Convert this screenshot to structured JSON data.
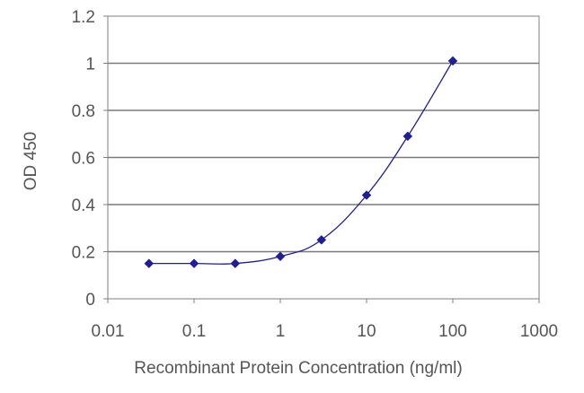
{
  "chart_data": {
    "type": "line",
    "title": "",
    "xlabel": "Recombinant Protein Concentration (ng/ml)",
    "ylabel": "OD 450",
    "x_scale": "log",
    "xlim": [
      0.01,
      1000
    ],
    "ylim": [
      0,
      1.2
    ],
    "x_ticks": [
      "0.01",
      "0.1",
      "1",
      "10",
      "100",
      "1000"
    ],
    "y_ticks": [
      "0",
      "0.2",
      "0.4",
      "0.6",
      "0.8",
      "1",
      "1.2"
    ],
    "grid": "horizontal",
    "legend": "none",
    "series": [
      {
        "color": "#1f1f8f",
        "marker": "diamond",
        "x": [
          0.03,
          0.1,
          0.3,
          1,
          3,
          10,
          30,
          100
        ],
        "y": [
          0.15,
          0.15,
          0.15,
          0.18,
          0.25,
          0.44,
          0.69,
          1.01
        ]
      }
    ]
  }
}
